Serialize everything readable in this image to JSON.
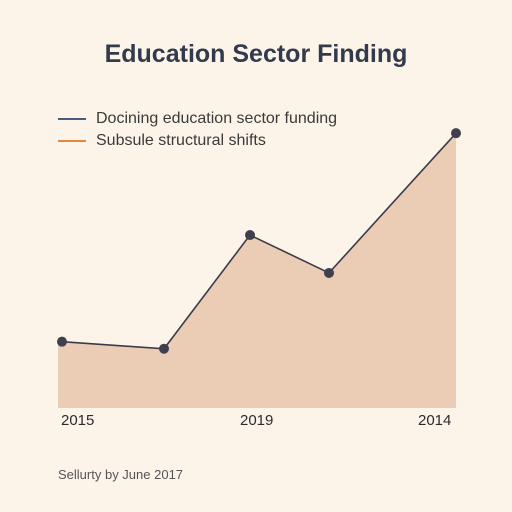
{
  "chart_data": {
    "type": "area",
    "title": "Education Sector Finding",
    "xlabel": "",
    "ylabel": "",
    "x_tick_labels": [
      "2015",
      "2019",
      "2014"
    ],
    "points": [
      {
        "x": 0,
        "y": 28
      },
      {
        "x": 1,
        "y": 25
      },
      {
        "x": 2,
        "y": 73
      },
      {
        "x": 3,
        "y": 57
      },
      {
        "x": 4,
        "y": 116
      }
    ],
    "ylim": [
      0,
      130
    ],
    "legend": [
      {
        "label": "Docining education sector funding",
        "color": "#4a5a85"
      },
      {
        "label": "Subsule structural shifts",
        "color": "#e8893a"
      }
    ],
    "legend_position": "top-left",
    "grid": false,
    "colors": {
      "area_fill": "#ebcdb5",
      "line": "#3b3b4a",
      "marker": "#3e4050"
    }
  },
  "footer": {
    "text": "Sellurty by June 2017"
  }
}
